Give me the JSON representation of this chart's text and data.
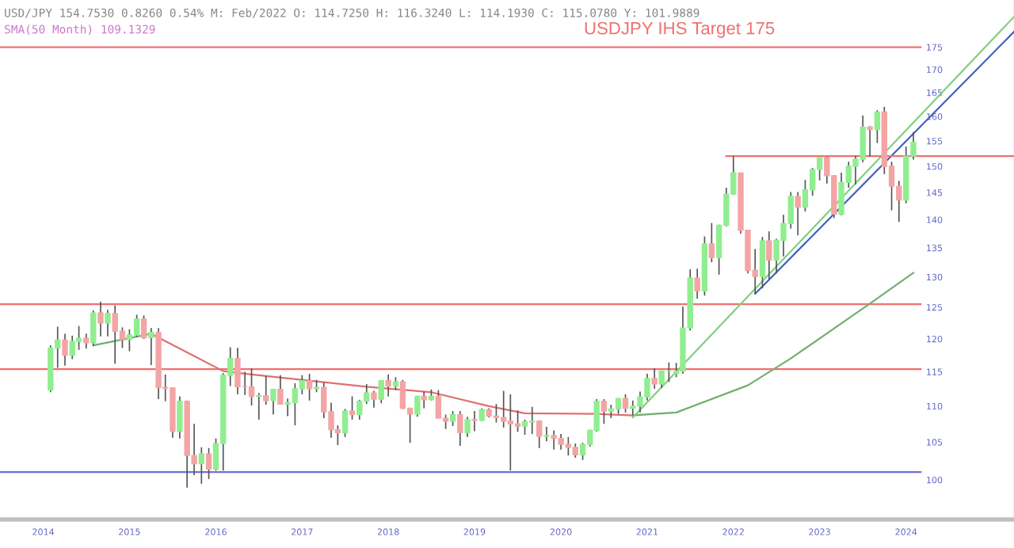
{
  "chart_data": {
    "type": "candlestick",
    "annotations": [
      "USD/JPY 154.7530 0.8260 0.54% M: Feb/2022 O: 114.7250 H: 116.3240 L: 114.1930 C: 115.0780 Y: 101.9889",
      "SMA(50 Month) 109.1329"
    ],
    "x": [
      "2014-11",
      "2014-12",
      "2015-01",
      "2015-02",
      "2015-03",
      "2015-04",
      "2015-05",
      "2015-06",
      "2015-07",
      "2015-08",
      "2015-09",
      "2015-10",
      "2015-11",
      "2015-12",
      "2016-01",
      "2016-02",
      "2016-03",
      "2016-04",
      "2016-05",
      "2016-06",
      "2016-07",
      "2016-08",
      "2016-09",
      "2016-10",
      "2016-11",
      "2016-12",
      "2017-01",
      "2017-02",
      "2017-03",
      "2017-04",
      "2017-05",
      "2017-06",
      "2017-07",
      "2017-08",
      "2017-09",
      "2017-10",
      "2017-11",
      "2017-12",
      "2018-01",
      "2018-02",
      "2018-03",
      "2018-04",
      "2018-05",
      "2018-06",
      "2018-07",
      "2018-08",
      "2018-09",
      "2018-10",
      "2018-11",
      "2018-12",
      "2019-01",
      "2019-02",
      "2019-03",
      "2019-04",
      "2019-05",
      "2019-06",
      "2019-07",
      "2019-08",
      "2019-09",
      "2019-10",
      "2019-11",
      "2019-12",
      "2020-01",
      "2020-02",
      "2020-03",
      "2020-04",
      "2020-05",
      "2020-06",
      "2020-07",
      "2020-08",
      "2020-09",
      "2020-10",
      "2020-11",
      "2020-12",
      "2021-01",
      "2021-02",
      "2021-03",
      "2021-04",
      "2021-05",
      "2021-06",
      "2021-07",
      "2021-08",
      "2021-09",
      "2021-10",
      "2021-11",
      "2021-12",
      "2022-01",
      "2022-02",
      "2022-03",
      "2022-04",
      "2022-05",
      "2022-06",
      "2022-07",
      "2022-08",
      "2022-09",
      "2022-10",
      "2022-11",
      "2022-12",
      "2023-01",
      "2023-02",
      "2023-03",
      "2023-04",
      "2023-05",
      "2023-06",
      "2023-07",
      "2023-08",
      "2023-09",
      "2023-10",
      "2023-11",
      "2023-12",
      "2024-01",
      "2024-02",
      "2024-03",
      "2024-04",
      "2024-05",
      "2024-06",
      "2024-07",
      "2024-08",
      "2024-09",
      "2024-10",
      "2024-11"
    ],
    "ohlc": [
      [
        112.3,
        119.0,
        112.0,
        118.6
      ],
      [
        118.6,
        121.9,
        115.6,
        119.8
      ],
      [
        119.8,
        120.8,
        115.9,
        117.5
      ],
      [
        117.5,
        120.5,
        116.9,
        119.6
      ],
      [
        119.6,
        122.0,
        118.3,
        120.1
      ],
      [
        120.1,
        120.8,
        118.5,
        119.4
      ],
      [
        119.4,
        124.5,
        118.9,
        124.1
      ],
      [
        124.1,
        125.9,
        120.4,
        122.5
      ],
      [
        122.5,
        124.6,
        120.4,
        124.0
      ],
      [
        124.0,
        125.3,
        116.2,
        121.2
      ],
      [
        121.2,
        121.8,
        118.6,
        119.9
      ],
      [
        119.9,
        121.5,
        118.1,
        120.6
      ],
      [
        120.6,
        123.8,
        120.3,
        123.1
      ],
      [
        123.1,
        123.7,
        120.0,
        120.2
      ],
      [
        120.2,
        121.7,
        116.0,
        121.0
      ],
      [
        121.0,
        121.7,
        111.0,
        112.7
      ],
      [
        112.7,
        114.6,
        110.7,
        112.6
      ],
      [
        112.6,
        112.7,
        105.6,
        106.5
      ],
      [
        106.5,
        111.4,
        105.5,
        110.7
      ],
      [
        110.7,
        110.8,
        99.0,
        103.2
      ],
      [
        103.2,
        107.5,
        100.6,
        102.1
      ],
      [
        102.1,
        104.3,
        99.5,
        103.4
      ],
      [
        103.4,
        104.2,
        100.1,
        101.4
      ],
      [
        101.4,
        105.5,
        101.2,
        104.8
      ],
      [
        104.8,
        114.8,
        101.2,
        114.5
      ],
      [
        114.5,
        118.7,
        112.9,
        117.0
      ],
      [
        117.0,
        118.6,
        111.7,
        112.8
      ],
      [
        112.8,
        115.0,
        111.6,
        112.8
      ],
      [
        112.8,
        115.5,
        110.1,
        111.4
      ],
      [
        111.4,
        111.9,
        108.1,
        111.5
      ],
      [
        111.5,
        114.4,
        110.2,
        110.8
      ],
      [
        110.8,
        112.5,
        108.8,
        112.4
      ],
      [
        112.4,
        114.5,
        110.2,
        110.3
      ],
      [
        110.3,
        111.1,
        108.6,
        110.5
      ],
      [
        110.5,
        113.3,
        107.3,
        112.5
      ],
      [
        112.5,
        114.5,
        111.7,
        113.7
      ],
      [
        113.7,
        114.7,
        110.8,
        112.5
      ],
      [
        112.5,
        113.8,
        112.0,
        112.7
      ],
      [
        112.7,
        113.4,
        108.3,
        109.2
      ],
      [
        109.2,
        110.5,
        105.6,
        106.7
      ],
      [
        106.7,
        107.3,
        104.6,
        106.3
      ],
      [
        106.3,
        109.6,
        105.7,
        109.3
      ],
      [
        109.3,
        111.4,
        108.1,
        108.8
      ],
      [
        108.8,
        110.9,
        108.1,
        110.7
      ],
      [
        110.7,
        113.2,
        110.3,
        111.9
      ],
      [
        111.9,
        112.2,
        109.8,
        111.0
      ],
      [
        111.0,
        113.7,
        110.4,
        113.7
      ],
      [
        113.7,
        114.6,
        111.4,
        112.9
      ],
      [
        112.9,
        114.2,
        112.3,
        113.5
      ],
      [
        113.5,
        113.8,
        109.6,
        109.7
      ],
      [
        109.7,
        109.7,
        104.9,
        108.9
      ],
      [
        108.9,
        111.5,
        108.5,
        111.4
      ],
      [
        111.4,
        112.1,
        109.7,
        110.9
      ],
      [
        110.9,
        112.4,
        110.8,
        111.4
      ],
      [
        111.4,
        112.3,
        108.3,
        108.3
      ],
      [
        108.3,
        108.8,
        106.8,
        107.9
      ],
      [
        107.9,
        109.3,
        107.2,
        108.8
      ],
      [
        108.8,
        109.3,
        104.5,
        106.3
      ],
      [
        106.3,
        108.5,
        105.7,
        108.1
      ],
      [
        108.1,
        109.3,
        106.5,
        108.0
      ],
      [
        108.0,
        109.7,
        107.9,
        109.5
      ],
      [
        109.5,
        109.7,
        108.4,
        108.6
      ],
      [
        108.6,
        110.3,
        107.7,
        108.4
      ],
      [
        108.4,
        112.2,
        107.0,
        107.9
      ],
      [
        107.9,
        111.7,
        101.2,
        107.5
      ],
      [
        107.5,
        109.4,
        106.4,
        107.2
      ],
      [
        107.2,
        108.1,
        106.0,
        107.8
      ],
      [
        107.8,
        109.9,
        106.1,
        107.9
      ],
      [
        107.9,
        108.0,
        104.2,
        105.8
      ],
      [
        105.8,
        107.1,
        105.1,
        105.9
      ],
      [
        105.9,
        106.6,
        104.0,
        105.5
      ],
      [
        105.5,
        106.1,
        104.0,
        104.7
      ],
      [
        104.7,
        105.7,
        103.2,
        104.3
      ],
      [
        104.3,
        104.8,
        102.9,
        103.3
      ],
      [
        103.3,
        104.9,
        102.6,
        104.7
      ],
      [
        104.7,
        106.7,
        104.4,
        106.6
      ],
      [
        106.6,
        111.0,
        106.4,
        110.7
      ],
      [
        110.7,
        111.0,
        107.5,
        109.3
      ],
      [
        109.3,
        110.2,
        108.3,
        109.6
      ],
      [
        109.6,
        111.1,
        108.9,
        111.1
      ],
      [
        111.1,
        111.7,
        109.1,
        109.7
      ],
      [
        109.7,
        110.8,
        108.7,
        110.0
      ],
      [
        110.0,
        112.1,
        109.1,
        111.3
      ],
      [
        111.3,
        114.7,
        110.8,
        114.0
      ],
      [
        114.0,
        115.5,
        112.5,
        113.2
      ],
      [
        113.2,
        115.2,
        112.6,
        115.1
      ],
      [
        115.1,
        116.4,
        113.5,
        115.1
      ],
      [
        114.725,
        116.324,
        114.193,
        115.078
      ],
      [
        115.1,
        125.1,
        114.7,
        121.7
      ],
      [
        121.7,
        131.3,
        121.3,
        129.8
      ],
      [
        129.8,
        131.4,
        126.4,
        127.7
      ],
      [
        127.7,
        137.0,
        126.9,
        135.7
      ],
      [
        135.7,
        139.4,
        132.5,
        133.3
      ],
      [
        133.3,
        139.1,
        130.4,
        139.0
      ],
      [
        139.0,
        145.9,
        138.8,
        144.7
      ],
      [
        144.7,
        152.0,
        144.6,
        148.7
      ],
      [
        148.7,
        148.8,
        137.5,
        138.1
      ],
      [
        138.1,
        138.2,
        130.6,
        131.1
      ],
      [
        131.1,
        134.8,
        127.2,
        130.1
      ],
      [
        130.1,
        136.9,
        128.1,
        136.2
      ],
      [
        136.2,
        137.9,
        129.6,
        132.9
      ],
      [
        132.9,
        136.6,
        130.6,
        136.3
      ],
      [
        136.3,
        140.9,
        133.5,
        139.3
      ],
      [
        139.3,
        145.1,
        138.4,
        144.3
      ],
      [
        144.3,
        145.1,
        137.2,
        142.3
      ],
      [
        142.3,
        147.4,
        141.5,
        145.5
      ],
      [
        145.5,
        149.7,
        144.4,
        149.4
      ],
      [
        149.4,
        151.7,
        147.3,
        151.7
      ],
      [
        151.7,
        151.9,
        146.7,
        148.2
      ],
      [
        148.2,
        148.3,
        140.3,
        141.0
      ],
      [
        141.0,
        148.8,
        140.8,
        146.9
      ],
      [
        146.9,
        150.9,
        145.9,
        150.0
      ],
      [
        150.0,
        152.0,
        146.5,
        151.4
      ],
      [
        151.4,
        160.2,
        150.8,
        157.8
      ],
      [
        157.8,
        158.0,
        151.9,
        157.3
      ],
      [
        157.3,
        161.3,
        154.6,
        160.9
      ],
      [
        160.9,
        162.0,
        148.5,
        150.0
      ],
      [
        150.0,
        150.9,
        141.7,
        146.2
      ],
      [
        146.2,
        147.2,
        139.6,
        143.6
      ],
      [
        143.6,
        153.9,
        143.0,
        152.0
      ],
      [
        152.0,
        156.8,
        151.3,
        154.753
      ]
    ],
    "colors": [
      "#90ee90",
      "#90ee90",
      "#f4a4a4",
      "#90ee90",
      "#90ee90",
      "#f4a4a4",
      "#90ee90",
      "#f4a4a4",
      "#90ee90",
      "#f4a4a4",
      "#f4a4a4",
      "#90ee90",
      "#90ee90",
      "#f4a4a4",
      "#90ee90",
      "#f4a4a4",
      "#f4a4a4",
      "#f4a4a4",
      "#90ee90",
      "#f4a4a4",
      "#f4a4a4",
      "#90ee90",
      "#f4a4a4",
      "#90ee90",
      "#90ee90",
      "#90ee90",
      "#f4a4a4",
      "#f4a4a4",
      "#f4a4a4",
      "#90ee90",
      "#f4a4a4",
      "#90ee90",
      "#f4a4a4",
      "#90ee90",
      "#90ee90",
      "#90ee90",
      "#f4a4a4",
      "#90ee90",
      "#f4a4a4",
      "#f4a4a4",
      "#f4a4a4",
      "#90ee90",
      "#f4a4a4",
      "#90ee90",
      "#90ee90",
      "#f4a4a4",
      "#90ee90",
      "#f4a4a4",
      "#90ee90",
      "#f4a4a4",
      "#f4a4a4",
      "#90ee90",
      "#f4a4a4",
      "#90ee90",
      "#f4a4a4",
      "#f4a4a4",
      "#90ee90",
      "#f4a4a4",
      "#90ee90",
      "#f4a4a4",
      "#90ee90",
      "#f4a4a4",
      "#f4a4a4",
      "#f4a4a4",
      "#f4a4a4",
      "#f4a4a4",
      "#90ee90",
      "#90ee90",
      "#f4a4a4",
      "#90ee90",
      "#f4a4a4",
      "#f4a4a4",
      "#f4a4a4",
      "#f4a4a4",
      "#90ee90",
      "#90ee90",
      "#90ee90",
      "#f4a4a4",
      "#90ee90",
      "#90ee90",
      "#f4a4a4",
      "#90ee90",
      "#90ee90",
      "#90ee90",
      "#f4a4a4",
      "#90ee90",
      "#90ee90",
      "#90ee90",
      "#90ee90",
      "#90ee90",
      "#f4a4a4",
      "#90ee90",
      "#f4a4a4",
      "#90ee90",
      "#90ee90",
      "#90ee90",
      "#f4a4a4",
      "#f4a4a4",
      "#f4a4a4",
      "#90ee90",
      "#f4a4a4",
      "#90ee90",
      "#90ee90",
      "#90ee90",
      "#f4a4a4",
      "#90ee90",
      "#90ee90",
      "#90ee90",
      "#f4a4a4",
      "#f4a4a4",
      "#90ee90",
      "#90ee90",
      "#90ee90",
      "#90ee90",
      "#f4a4a4",
      "#90ee90",
      "#f4a4a4",
      "#f4a4a4",
      "#f4a4a4",
      "#90ee90",
      "#90ee90"
    ],
    "series": [
      {
        "type": "line",
        "color": "#e07070",
        "x": [
          "2016-01",
          "2016-11",
          "2017-03",
          "2018-07",
          "2019-04",
          "2019-12",
          "2020-05",
          "2021-03",
          "2021-08"
        ],
        "values": [
          120.8,
          115.1,
          114.6,
          112.8,
          112.0,
          110.0,
          109.0,
          108.9,
          108.7
        ]
      },
      {
        "type": "line",
        "color": "#70b070",
        "x": [
          "2015-05",
          "2016-01",
          "2016-02",
          "2021-08",
          "2022-02",
          "2022-12",
          "2023-06",
          "2024-05",
          "2024-11"
        ],
        "values": [
          119.0,
          120.8,
          null,
          108.7,
          109.1,
          113.0,
          117.0,
          125.6,
          130.7
        ]
      },
      {
        "type": "line",
        "color": "#80d080",
        "x": [
          "2021-08",
          "2026-01"
        ],
        "values": [
          108.4,
          182.0
        ]
      },
      {
        "type": "line",
        "color": "#4060c0",
        "x": [
          "2023-01",
          "2026-01"
        ],
        "values": [
          127.2,
          178.5
        ]
      },
      {
        "type": "line",
        "color": "#f07070",
        "x": [
          "2022-09",
          "2026-01"
        ],
        "values": [
          152.0,
          152.0
        ]
      }
    ],
    "ref_lines": [
      {
        "axis": "y",
        "value": 175,
        "label": "USDJPY IHS Target 175",
        "color": "#f07070"
      },
      {
        "axis": "y",
        "value": 125.5,
        "color": "#f07070"
      },
      {
        "axis": "y",
        "value": 115.4,
        "color": "#f07070"
      },
      {
        "axis": "y",
        "value": 101.0,
        "color": "#7070e0"
      }
    ],
    "log": true,
    "xlim": [
      "2014-04-01",
      "2026-01-01"
    ],
    "xticks": [
      {
        "value": "2014-10-01",
        "label": "2014"
      },
      {
        "value": "2015-10-01",
        "label": "2015"
      },
      {
        "value": "2016-10-01",
        "label": "2016"
      },
      {
        "value": "2017-10-01",
        "label": "2017"
      },
      {
        "value": "2018-10-01",
        "label": "2018"
      },
      {
        "value": "2019-10-01",
        "label": "2019"
      },
      {
        "value": "2020-10-01",
        "label": "2020"
      },
      {
        "value": "2021-10-01",
        "label": "2021"
      },
      {
        "value": "2022-10-01",
        "label": "2022"
      },
      {
        "value": "2023-10-01",
        "label": "2023"
      },
      {
        "value": "2024-10-01",
        "label": "2024"
      }
    ],
    "ylim": [
      95,
      186
    ],
    "yticks": [
      100,
      105,
      110,
      115,
      120,
      125,
      130,
      135,
      140,
      145,
      150,
      155,
      160,
      165,
      170,
      175
    ],
    "grid": false,
    "legend": false
  }
}
